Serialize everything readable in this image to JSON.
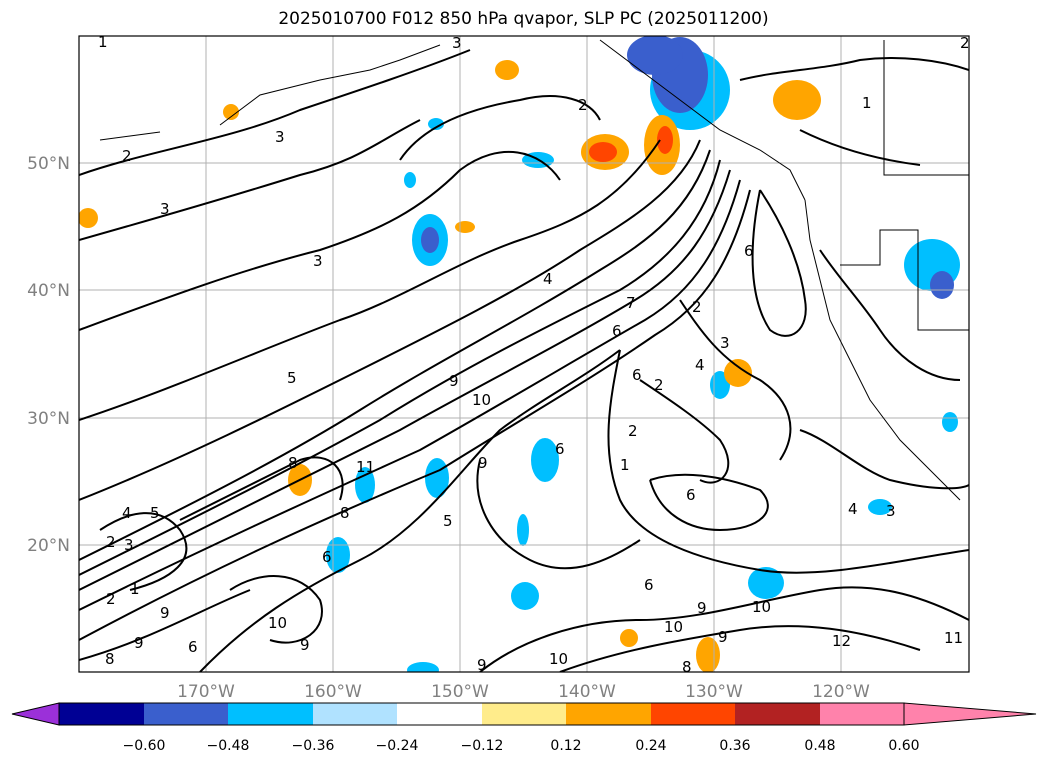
{
  "title": "2025010700 F012 850 hPa qvapor, SLP PC (2025011200)",
  "map": {
    "lat_labels": [
      "50°N",
      "40°N",
      "30°N",
      "20°N"
    ],
    "lon_labels": [
      "170°W",
      "160°W",
      "150°W",
      "140°W",
      "130°W",
      "120°W"
    ],
    "contour_labels": [
      "1",
      "2",
      "3",
      "3",
      "3",
      "3",
      "2",
      "1",
      "2",
      "4",
      "5",
      "9",
      "10",
      "7",
      "6",
      "6",
      "2",
      "4",
      "3",
      "6",
      "2",
      "1",
      "2",
      "6",
      "9",
      "11",
      "8",
      "8",
      "6",
      "5",
      "10",
      "9",
      "6",
      "6",
      "9",
      "10",
      "9",
      "10",
      "12",
      "11",
      "4",
      "3",
      "4",
      "5",
      "2",
      "3",
      "2",
      "1",
      "9",
      "6",
      "8",
      "9",
      "8",
      "9",
      "10"
    ]
  },
  "colorbar": {
    "colors": [
      "#9b30d9",
      "#000094",
      "#3a5fcd",
      "#00bfff",
      "#b0e2ff",
      "#ffffff",
      "#ffec8b",
      "#ffa500",
      "#ff4500",
      "#b22222",
      "#ff82ab"
    ],
    "ticks": [
      "−0.60",
      "−0.48",
      "−0.36",
      "−0.24",
      "−0.12",
      "0.12",
      "0.24",
      "0.36",
      "0.48",
      "0.60"
    ]
  }
}
